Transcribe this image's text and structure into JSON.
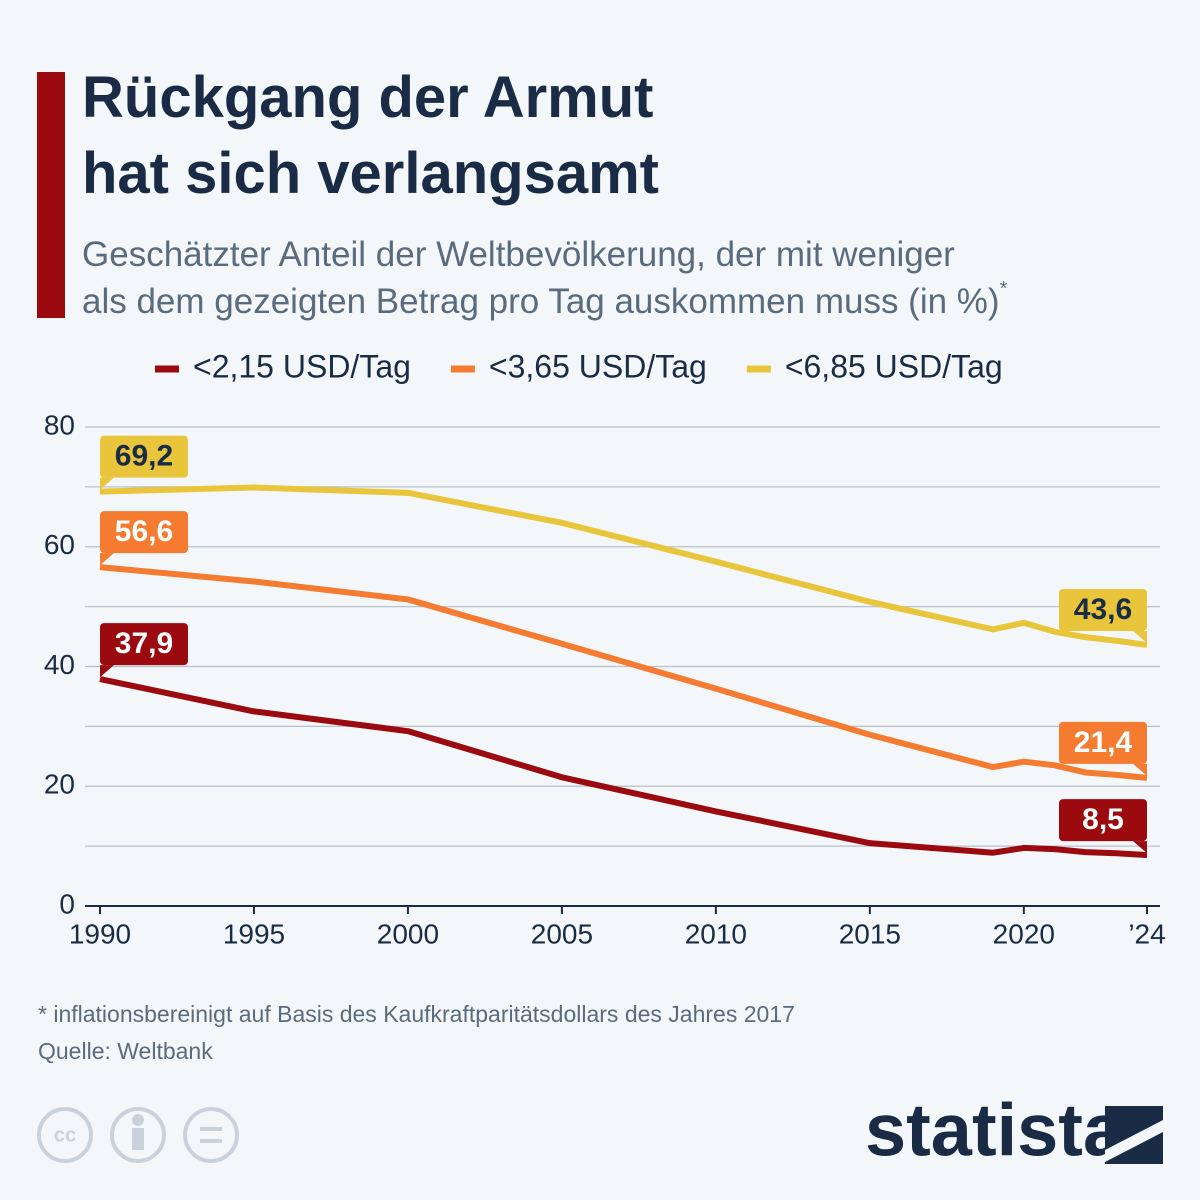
{
  "chart_data": {
    "type": "line",
    "title": "Rückgang der Armut hat sich verlangsamt",
    "subtitle": "Geschätzter Anteil der Weltbevölkerung, der mit weniger als dem gezeigten Betrag pro Tag auskommen muss (in %)",
    "subtitle_marker": "*",
    "x": [
      1990,
      1995,
      2000,
      2005,
      2010,
      2015,
      2019,
      2020,
      2021,
      2022,
      2023,
      2024
    ],
    "series": [
      {
        "name": "<2,15 USD/Tag",
        "color": "#9b0a0f",
        "values": [
          37.9,
          32.5,
          29.2,
          21.5,
          15.8,
          10.5,
          8.9,
          9.7,
          9.5,
          9.0,
          8.8,
          8.5
        ],
        "value_labels": [
          "37,9",
          null,
          null,
          null,
          null,
          null,
          null,
          null,
          null,
          null,
          null,
          "8,5"
        ]
      },
      {
        "name": "<3,65 USD/Tag",
        "color": "#f47b30",
        "values": [
          56.6,
          54.2,
          51.2,
          43.8,
          36.3,
          28.6,
          23.2,
          24.1,
          23.5,
          22.3,
          21.9,
          21.4
        ],
        "value_labels": [
          "56,6",
          null,
          null,
          null,
          null,
          null,
          null,
          null,
          null,
          null,
          null,
          "21,4"
        ]
      },
      {
        "name": "<6,85 USD/Tag",
        "color": "#e8c53a",
        "values": [
          69.2,
          69.9,
          69.0,
          64.0,
          57.5,
          50.8,
          46.2,
          47.3,
          45.8,
          44.9,
          44.3,
          43.6
        ],
        "value_labels": [
          "69,2",
          null,
          null,
          null,
          null,
          null,
          null,
          null,
          null,
          null,
          null,
          "43,6"
        ]
      }
    ],
    "xlim": [
      1990,
      2024
    ],
    "xticks": [
      1990,
      1995,
      2000,
      2005,
      2010,
      2015,
      2020,
      {
        "value": 2024,
        "label": "’24"
      }
    ],
    "ylim": [
      0,
      80
    ],
    "yticks": [
      0,
      20,
      40,
      60,
      80
    ],
    "grid": true,
    "footnote": "* inflationsbereinigt auf Basis des Kaufkraftparitätsdollars des Jahres 2017",
    "source": "Quelle: Weltbank",
    "brand": "statista"
  }
}
